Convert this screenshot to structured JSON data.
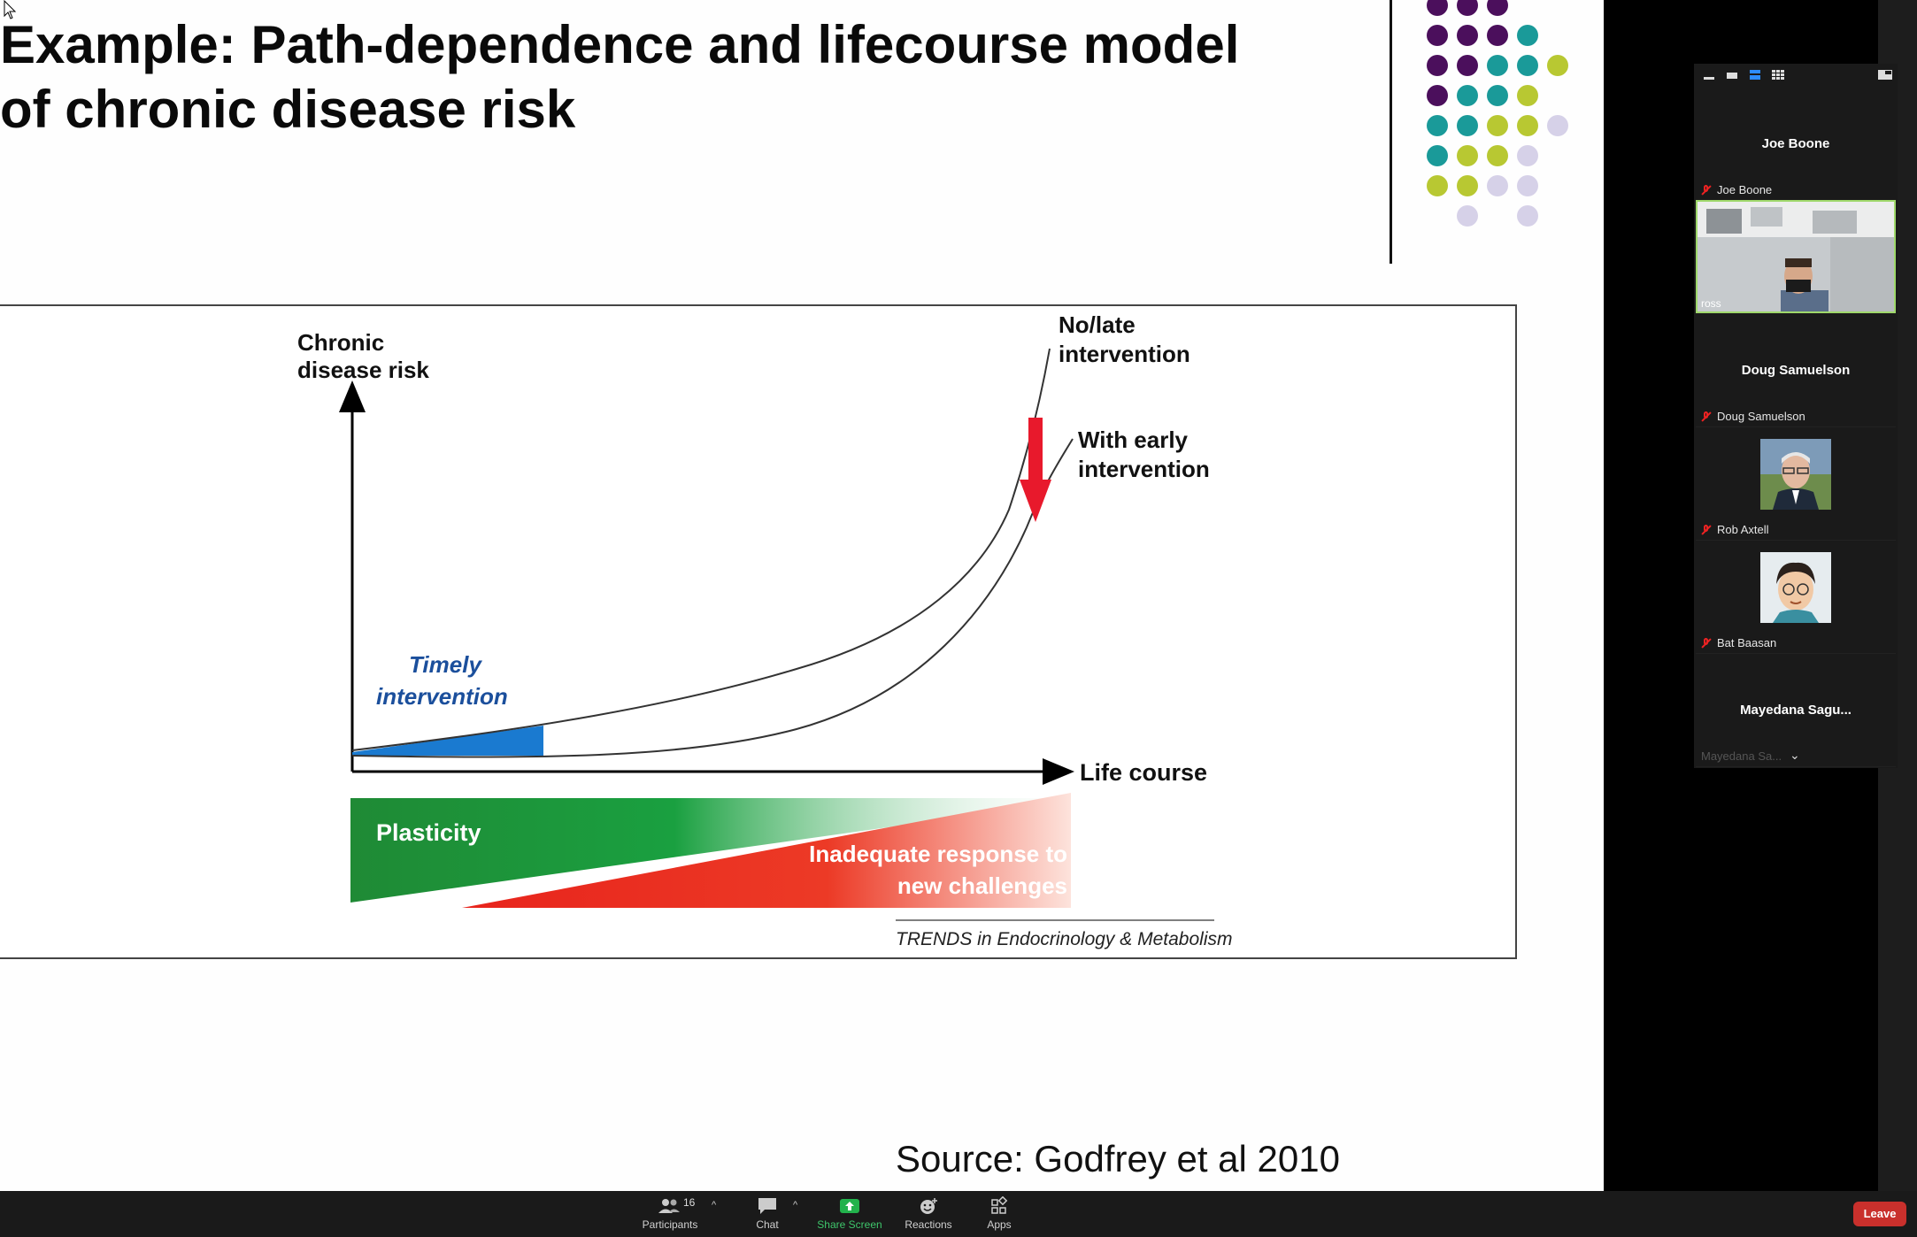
{
  "slide": {
    "title_line1": "Example: Path-dependence and lifecourse model",
    "title_line2": "of chronic disease risk",
    "figure": {
      "y_axis_label_line1": "Chronic",
      "y_axis_label_line2": "disease risk",
      "x_axis_label": "Life course",
      "no_late_line1": "No/late",
      "no_late_line2": "intervention",
      "early_line1": "With early",
      "early_line2": "intervention",
      "timely_line1": "Timely",
      "timely_line2": "intervention",
      "plasticity": "Plasticity",
      "inadequate_line1": "Inadequate response to",
      "inadequate_line2": "new challenges",
      "journal": "TRENDS in Endocrinology & Metabolism"
    },
    "source": "Source: Godfrey et al 2010",
    "colors": {
      "purple": "#4b0f5c",
      "teal": "#1a9a99",
      "lime": "#b8c832",
      "lavender": "#d6d1e8"
    }
  },
  "participants_panel": {
    "tiles": [
      {
        "name_center": "Joe Boone",
        "label": "Joe Boone",
        "muted": true
      },
      {
        "video_label": "ross"
      },
      {
        "name_center": "Doug Samuelson",
        "label": "Doug Samuelson",
        "muted": true
      },
      {
        "label": "Rob Axtell",
        "muted": true
      },
      {
        "label": "Bat Baasan",
        "muted": true
      },
      {
        "name_center": "Mayedana  Sagu...",
        "label": "Mayedana Sa..."
      }
    ]
  },
  "toolbar": {
    "participants_label": "Participants",
    "participants_count": "16",
    "chat_label": "Chat",
    "share_label": "Share Screen",
    "reactions_label": "Reactions",
    "apps_label": "Apps",
    "leave_label": "Leave"
  }
}
